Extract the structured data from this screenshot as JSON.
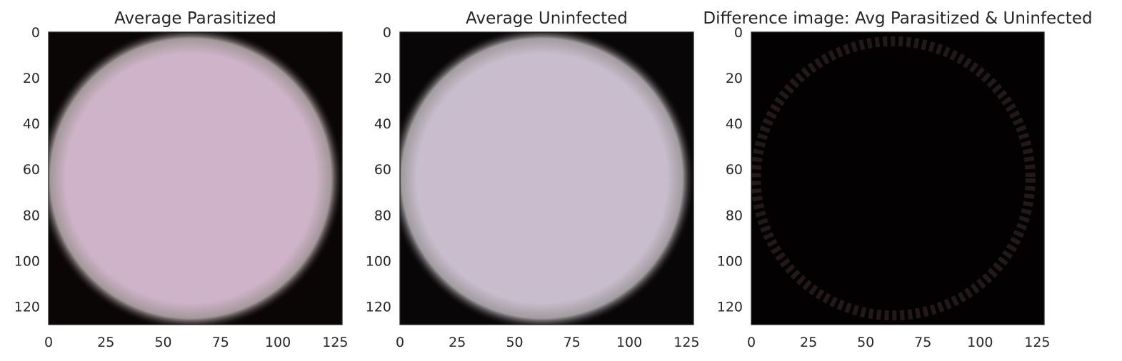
{
  "chart_data": [
    {
      "type": "heatmap",
      "id": "avg-parasitized",
      "title": "Average Parasitized",
      "xlabel": "",
      "ylabel": "",
      "xlim": [
        0,
        128
      ],
      "ylim": [
        128,
        0
      ],
      "xticks": [
        0,
        25,
        50,
        75,
        100,
        125
      ],
      "yticks": [
        0,
        20,
        40,
        60,
        80,
        100,
        120
      ],
      "grid": false,
      "image": {
        "content": "circular averaged cell on black background",
        "center": [
          62,
          64
        ],
        "radius": 64,
        "inner_color": "#cfb3c9",
        "edge_color": "#bfb1b5",
        "background_color": "#0a0606"
      }
    },
    {
      "type": "heatmap",
      "id": "avg-uninfected",
      "title": "Average Uninfected",
      "xlabel": "",
      "ylabel": "",
      "xlim": [
        0,
        128
      ],
      "ylim": [
        128,
        0
      ],
      "xticks": [
        0,
        25,
        50,
        75,
        100,
        125
      ],
      "yticks": [
        0,
        20,
        40,
        60,
        80,
        100,
        120
      ],
      "grid": false,
      "image": {
        "content": "circular averaged cell on black background",
        "center": [
          62,
          64
        ],
        "radius": 64,
        "inner_color": "#c9bccd",
        "edge_color": "#bcb7bb",
        "background_color": "#080606"
      }
    },
    {
      "type": "heatmap",
      "id": "difference",
      "title": "Difference image: Avg Parasitized & Uninfected",
      "xlabel": "",
      "ylabel": "",
      "xlim": [
        0,
        128
      ],
      "ylim": [
        128,
        0
      ],
      "xticks": [
        0,
        25,
        50,
        75,
        100,
        125
      ],
      "yticks": [
        0,
        20,
        40,
        60,
        80,
        100,
        120
      ],
      "grid": false,
      "image": {
        "content": "near-black difference map with faint ring near cell border",
        "background_color": "#030101",
        "ring_color": "#3a2a2c",
        "ring_center": [
          62,
          64
        ],
        "ring_radius": 60
      }
    }
  ]
}
